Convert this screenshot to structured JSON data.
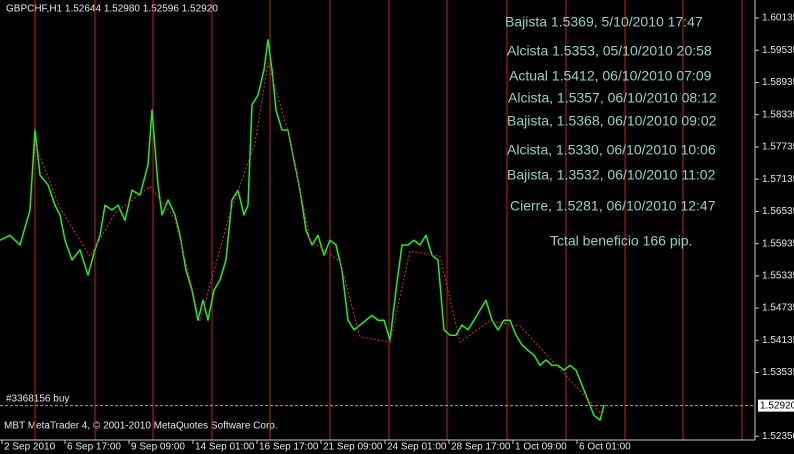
{
  "chart_data": {
    "type": "line",
    "title": "GBPCHF,H1  1.52644 1.52980 1.52596 1.52920",
    "footer": "MBT MetaTrader 4, © 2001-2010 MetaQuotes Software Corp.",
    "xlim": [
      0,
      755
    ],
    "ylim": [
      1.5228,
      1.6047
    ],
    "xticks": [
      {
        "value": 2,
        "label": "2 Sep 2010"
      },
      {
        "value": 65,
        "label": "6 Sep 17:00"
      },
      {
        "value": 129,
        "label": "9 Sep 09:00"
      },
      {
        "value": 193,
        "label": "14 Sep 01:00"
      },
      {
        "value": 257,
        "label": "16 Sep 17:00"
      },
      {
        "value": 321,
        "label": "21 Sep 09:00"
      },
      {
        "value": 385,
        "label": "24 Sep 01:00"
      },
      {
        "value": 449,
        "label": "28 Sep 17:00"
      },
      {
        "value": 513,
        "label": "1 Oct 09:00"
      },
      {
        "value": 577,
        "label": "6 Oct 01:00"
      }
    ],
    "yticks": [
      1.60135,
      1.59535,
      1.58935,
      1.58335,
      1.57735,
      1.57135,
      1.56535,
      1.55935,
      1.55335,
      1.54735,
      1.54135,
      1.53535,
      {
        "value": 1.5235,
        "label": "1.52350"
      }
    ],
    "current_price": {
      "value": 1.5292,
      "label": "1.52920"
    },
    "order_line": {
      "label": "#3368156 buy",
      "value": 1.5292,
      "color": "#6fbf8f"
    },
    "separators": [
      35,
      95,
      153,
      212,
      270,
      330,
      389,
      447,
      507,
      566,
      625,
      683,
      742
    ],
    "separator_color": "#c0201a",
    "series": [
      {
        "color": "#22ee22",
        "width": 1.5,
        "dashed": false,
        "x": [
          0,
          10,
          20,
          30,
          35,
          40,
          48,
          55,
          60,
          65,
          72,
          80,
          88,
          95,
          100,
          105,
          112,
          118,
          125,
          132,
          140,
          148,
          152,
          158,
          162,
          168,
          175,
          180,
          186,
          192,
          198,
          203,
          208,
          214,
          220,
          226,
          232,
          238,
          244,
          248,
          252,
          258,
          264,
          268,
          272,
          276,
          282,
          288,
          294,
          300,
          306,
          312,
          318,
          324,
          330,
          336,
          342,
          348,
          354,
          360,
          366,
          372,
          378,
          384,
          390,
          396,
          402,
          408,
          414,
          420,
          426,
          432,
          438,
          444,
          450,
          456,
          462,
          468,
          474,
          480,
          486,
          492,
          498,
          504,
          510,
          516,
          522,
          528,
          534,
          540,
          546,
          552,
          558,
          564,
          570,
          576,
          582,
          588,
          594,
          600,
          604
        ],
        "values": [
          1.56,
          1.5609,
          1.5591,
          1.5656,
          1.5805,
          1.5721,
          1.5703,
          1.5665,
          1.5647,
          1.56,
          1.5563,
          1.5582,
          1.5535,
          1.5582,
          1.5609,
          1.5665,
          1.5656,
          1.5665,
          1.5637,
          1.5693,
          1.5684,
          1.574,
          1.5842,
          1.5703,
          1.5647,
          1.5675,
          1.5647,
          1.5609,
          1.5544,
          1.5507,
          1.5451,
          1.5488,
          1.5451,
          1.5507,
          1.5526,
          1.5563,
          1.5675,
          1.5693,
          1.5647,
          1.5665,
          1.5852,
          1.587,
          1.5917,
          1.5973,
          1.5917,
          1.5842,
          1.5805,
          1.5805,
          1.5749,
          1.5693,
          1.5619,
          1.5591,
          1.5609,
          1.5572,
          1.56,
          1.5591,
          1.5544,
          1.5451,
          1.5433,
          1.5442,
          1.5451,
          1.546,
          1.5451,
          1.5451,
          1.5414,
          1.5507,
          1.5591,
          1.5591,
          1.56,
          1.5591,
          1.5609,
          1.5572,
          1.5563,
          1.5433,
          1.5423,
          1.5423,
          1.5442,
          1.5433,
          1.5451,
          1.547,
          1.5488,
          1.5451,
          1.5433,
          1.5451,
          1.5451,
          1.5423,
          1.5405,
          1.5395,
          1.5386,
          1.5367,
          1.5377,
          1.5367,
          1.5367,
          1.5358,
          1.5367,
          1.5358,
          1.533,
          1.5302,
          1.5274,
          1.5265,
          1.5293
        ]
      },
      {
        "color": "#e03020",
        "width": 1,
        "dashed": true,
        "x": [
          35,
          60,
          90,
          115,
          150,
          175,
          200,
          230,
          255,
          268,
          290,
          310,
          340,
          360,
          390,
          410,
          440,
          460,
          490,
          520,
          560,
          590,
          604
        ],
        "values": [
          1.578,
          1.566,
          1.557,
          1.565,
          1.57,
          1.564,
          1.545,
          1.565,
          1.578,
          1.593,
          1.579,
          1.56,
          1.556,
          1.542,
          1.541,
          1.558,
          1.557,
          1.541,
          1.545,
          1.544,
          1.536,
          1.53,
          1.527
        ]
      }
    ],
    "annotations": [
      "Bajista 1.5369, 5/10/2010 17:47",
      "Alcista 1.5353, 05/10/2010 20:58",
      "Actual 1.5412, 06/10/2010 07:09",
      "Alcista, 1.5357, 06/10/2010 08:12",
      "Bajista, 1.5368, 06/10/2010 09:02",
      "Alcista, 1.5330, 06/10/2010 10:06",
      "Bajista, 1.3532, 06/10/2010 11:02",
      "Cierre, 1.5281, 06/10/2010 12:47",
      "Tctal beneficio 166 pip."
    ]
  }
}
